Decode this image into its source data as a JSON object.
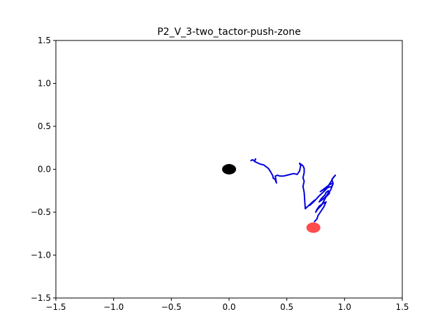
{
  "chart_data": {
    "type": "line",
    "title": "P2_V_3-two_tactor-push-zone",
    "xlabel": "",
    "ylabel": "",
    "xlim": [
      -1.5,
      1.5
    ],
    "ylim": [
      -1.5,
      1.5
    ],
    "grid": false,
    "xticks": [
      -1.5,
      -1.0,
      -0.5,
      0.0,
      0.5,
      1.0,
      1.5
    ],
    "yticks": [
      -1.5,
      -1.0,
      -0.5,
      0.0,
      0.5,
      1.0,
      1.5
    ],
    "xtick_labels": [
      "−1.5",
      "−1.0",
      "−0.5",
      "0.0",
      "0.5",
      "1.0",
      "1.5"
    ],
    "ytick_labels": [
      "−1.5",
      "−1.0",
      "−0.5",
      "0.0",
      "0.5",
      "1.0",
      "1.5"
    ],
    "series": [
      {
        "color": "#0000dd",
        "x": [
          0.19,
          0.2,
          0.22,
          0.23,
          0.22,
          0.27,
          0.3,
          0.34,
          0.36,
          0.38,
          0.38,
          0.4,
          0.41,
          0.4,
          0.42,
          0.44,
          0.47,
          0.5,
          0.53,
          0.56,
          0.59,
          0.61,
          0.62,
          0.61,
          0.62,
          0.64,
          0.65,
          0.65,
          0.64,
          0.65,
          0.64,
          0.65,
          0.66,
          0.7,
          0.74,
          0.7,
          0.74,
          0.78,
          0.82,
          0.85,
          0.87,
          0.89,
          0.9,
          0.92,
          0.89,
          0.9,
          0.87,
          0.84,
          0.79,
          0.84,
          0.89,
          0.9,
          0.88,
          0.84,
          0.87,
          0.86,
          0.84,
          0.83,
          0.8,
          0.78,
          0.8,
          0.83,
          0.85,
          0.86,
          0.84,
          0.82,
          0.8,
          0.77,
          0.75,
          0.76,
          0.78,
          0.8,
          0.84,
          0.82,
          0.79,
          0.77,
          0.76,
          0.74
        ],
        "y": [
          0.1,
          0.11,
          0.1,
          0.12,
          0.09,
          0.06,
          0.05,
          0.01,
          -0.03,
          -0.08,
          -0.1,
          -0.12,
          -0.16,
          -0.08,
          -0.07,
          -0.08,
          -0.08,
          -0.07,
          -0.06,
          -0.05,
          -0.06,
          -0.02,
          0.04,
          0.07,
          0.06,
          0.04,
          0.01,
          -0.04,
          -0.1,
          -0.14,
          -0.2,
          -0.27,
          -0.46,
          -0.41,
          -0.36,
          -0.42,
          -0.37,
          -0.31,
          -0.26,
          -0.22,
          -0.17,
          -0.13,
          -0.1,
          -0.07,
          -0.12,
          -0.16,
          -0.18,
          -0.21,
          -0.26,
          -0.22,
          -0.2,
          -0.17,
          -0.24,
          -0.32,
          -0.28,
          -0.25,
          -0.27,
          -0.3,
          -0.34,
          -0.38,
          -0.36,
          -0.33,
          -0.3,
          -0.27,
          -0.32,
          -0.37,
          -0.42,
          -0.46,
          -0.5,
          -0.47,
          -0.43,
          -0.41,
          -0.38,
          -0.44,
          -0.5,
          -0.54,
          -0.58,
          -0.61
        ]
      }
    ],
    "markers": [
      {
        "x": 0.0,
        "y": 0.0,
        "color": "#000000",
        "opacity": 1.0
      },
      {
        "x": 0.73,
        "y": -0.68,
        "color": "#ff0000",
        "opacity": 0.7
      }
    ]
  }
}
